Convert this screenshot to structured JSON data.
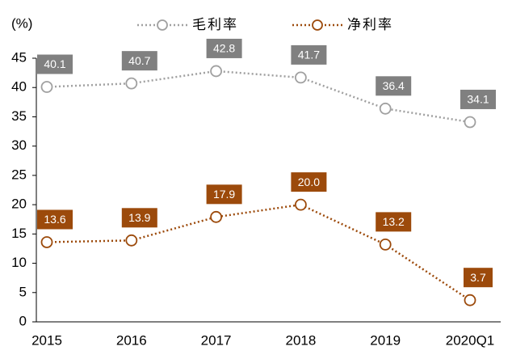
{
  "chart_data": {
    "type": "line",
    "y_label": "(%)",
    "categories": [
      "2015",
      "2016",
      "2017",
      "2018",
      "2019",
      "2020Q1"
    ],
    "series": [
      {
        "name": "毛利率",
        "color": "#a0a0a0",
        "label_color": "#808080",
        "values": [
          40.1,
          40.7,
          42.8,
          41.7,
          36.4,
          34.1
        ],
        "value_labels": [
          "40.1",
          "40.7",
          "42.8",
          "41.7",
          "36.4",
          "34.1"
        ]
      },
      {
        "name": "净利率",
        "color": "#9c4a0b",
        "label_color": "#9c4a0b",
        "values": [
          13.6,
          13.9,
          17.9,
          20.0,
          13.2,
          3.7
        ],
        "value_labels": [
          "13.6",
          "13.9",
          "17.9",
          "20.0",
          "13.2",
          "3.7"
        ]
      }
    ],
    "ylim": [
      0,
      45
    ],
    "yticks": [
      0,
      5,
      10,
      15,
      20,
      25,
      30,
      35,
      40,
      45
    ],
    "legend": "top"
  }
}
